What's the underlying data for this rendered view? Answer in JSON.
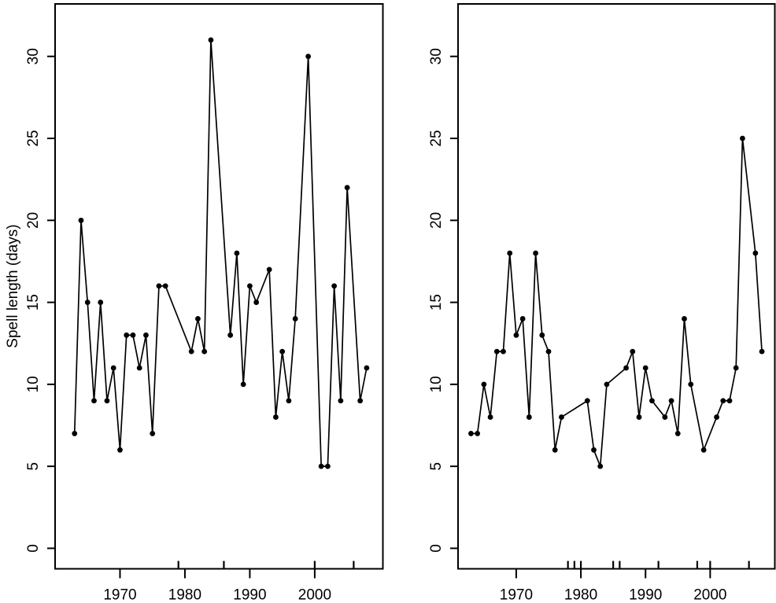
{
  "figure": {
    "ylabel": "Spell length (days)",
    "colors": {
      "foreground": "#000000",
      "background": "#ffffff"
    }
  },
  "chart_data": [
    {
      "type": "line",
      "panel": "left",
      "title": "",
      "xlabel": "",
      "ylabel": "Spell length (days)",
      "marker": "filled-circle",
      "grid": false,
      "legend": false,
      "xlim": [
        1960,
        2010.5
      ],
      "ylim": [
        -1.25,
        33.2
      ],
      "x_ticks": [
        1970,
        1980,
        1990,
        2000
      ],
      "x_tick_labels": [
        "1970",
        "1980",
        "1990",
        "2000"
      ],
      "y_ticks": [
        0,
        5,
        10,
        15,
        20,
        25,
        30
      ],
      "y_tick_labels": [
        "0",
        "5",
        "10",
        "15",
        "20",
        "25",
        "30"
      ],
      "x": [
        1963,
        1964,
        1965,
        1966,
        1967,
        1968,
        1969,
        1970,
        1971,
        1972,
        1973,
        1974,
        1975,
        1976,
        1977,
        1981,
        1982,
        1983,
        1984,
        1987,
        1988,
        1989,
        1990,
        1991,
        1993,
        1994,
        1995,
        1996,
        1997,
        1999,
        2001,
        2002,
        2003,
        2004,
        2005,
        2007,
        2008
      ],
      "y": [
        7,
        20,
        15,
        9,
        15,
        9,
        11,
        6,
        13,
        13,
        11,
        13,
        7,
        16,
        16,
        12,
        14,
        12,
        31,
        13,
        18,
        10,
        16,
        15,
        17,
        8,
        12,
        9,
        14,
        30,
        5,
        5,
        16,
        9,
        22,
        9,
        11
      ],
      "rug_years": [
        1979,
        1986,
        2000,
        2006
      ]
    },
    {
      "type": "line",
      "panel": "right",
      "title": "",
      "xlabel": "",
      "ylabel": "",
      "marker": "filled-circle",
      "grid": false,
      "legend": false,
      "xlim": [
        1961,
        2010
      ],
      "ylim": [
        -1.25,
        33.2
      ],
      "x_ticks": [
        1970,
        1980,
        1990,
        2000
      ],
      "x_tick_labels": [
        "1970",
        "1980",
        "1990",
        "2000"
      ],
      "y_ticks": [
        0,
        5,
        10,
        15,
        20,
        25,
        30
      ],
      "y_tick_labels": [
        "0",
        "5",
        "10",
        "15",
        "20",
        "25",
        "30"
      ],
      "x": [
        1963,
        1964,
        1965,
        1966,
        1967,
        1968,
        1969,
        1970,
        1971,
        1972,
        1973,
        1974,
        1975,
        1976,
        1977,
        1981,
        1982,
        1983,
        1984,
        1987,
        1988,
        1989,
        1990,
        1991,
        1993,
        1994,
        1995,
        1996,
        1997,
        1999,
        2001,
        2002,
        2003,
        2004,
        2005,
        2007,
        2008
      ],
      "y": [
        7,
        7,
        10,
        8,
        12,
        12,
        18,
        13,
        14,
        8,
        18,
        13,
        12,
        6,
        8,
        9,
        6,
        5,
        10,
        11,
        12,
        8,
        11,
        9,
        8,
        9,
        7,
        14,
        10,
        6,
        8,
        9,
        9,
        11,
        25,
        18,
        12
      ],
      "rug_years": [
        1978,
        1979,
        1980,
        1985,
        1986,
        1992,
        1998,
        2000,
        2006
      ]
    }
  ]
}
